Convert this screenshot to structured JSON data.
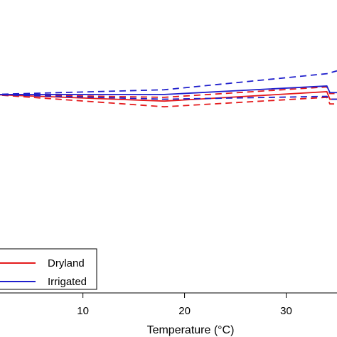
{
  "chart_data": {
    "type": "line",
    "title": "",
    "xlabel": "Temperature (°C)",
    "ylabel": "",
    "xlim": [
      1,
      35
    ],
    "ylim": [
      -2.1,
      1.0
    ],
    "x_ticks": [
      "10",
      "20",
      "30"
    ],
    "x_tick_values": [
      10,
      20,
      30
    ],
    "grid": false,
    "legend_position": "bottom-left",
    "legend": [
      {
        "label": "Dryland",
        "color": "#e41a1c"
      },
      {
        "label": "Irrigated",
        "color": "#1f1fcc"
      }
    ],
    "series": [
      {
        "name": "Dryland",
        "role": "estimate",
        "color": "#e41a1c",
        "dash": false,
        "x": [
          1,
          18,
          34,
          34.3,
          35
        ],
        "y": [
          0,
          -0.07,
          0.03,
          -0.05,
          -0.05
        ]
      },
      {
        "name": "Dryland",
        "role": "lower-bound",
        "color": "#e41a1c",
        "dash": true,
        "x": [
          1,
          18,
          34,
          34.3,
          35
        ],
        "y": [
          0,
          -0.13,
          -0.03,
          -0.1,
          -0.1
        ]
      },
      {
        "name": "Dryland",
        "role": "upper-bound",
        "color": "#e41a1c",
        "dash": true,
        "x": [
          1,
          18,
          34,
          34.3,
          35
        ],
        "y": [
          0,
          -0.03,
          0.08,
          0.01,
          0.01
        ]
      },
      {
        "name": "Irrigated",
        "role": "estimate",
        "color": "#1f1fcc",
        "dash": false,
        "x": [
          1,
          18,
          34,
          34.3,
          35
        ],
        "y": [
          0,
          0,
          0.09,
          0.02,
          0.02
        ]
      },
      {
        "name": "Irrigated",
        "role": "lower-bound",
        "color": "#1f1fcc",
        "dash": true,
        "x": [
          1,
          18,
          34,
          34.3,
          35
        ],
        "y": [
          0,
          -0.05,
          -0.02,
          -0.05,
          -0.05
        ]
      },
      {
        "name": "Irrigated",
        "role": "upper-bound",
        "color": "#1f1fcc",
        "dash": true,
        "x": [
          1,
          18,
          34,
          35
        ],
        "y": [
          0,
          0.05,
          0.22,
          0.25
        ]
      }
    ]
  }
}
